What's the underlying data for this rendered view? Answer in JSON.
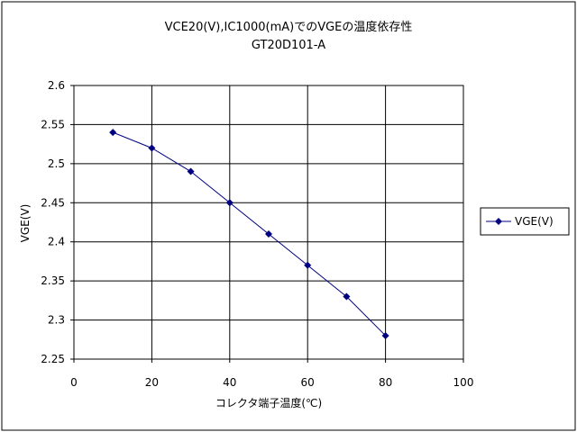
{
  "chart_data": {
    "type": "line",
    "title": "VCE20(V),IC1000(mA)でのVGEの温度依存性",
    "subtitle": "GT20D101-A",
    "xlabel": "コレクタ端子温度(℃)",
    "ylabel": "VGE(V)",
    "xlim": [
      0,
      100
    ],
    "ylim": [
      2.25,
      2.6
    ],
    "x_ticks": [
      "0",
      "20",
      "40",
      "60",
      "80",
      "100"
    ],
    "y_ticks": [
      "2.25",
      "2.3",
      "2.35",
      "2.4",
      "2.45",
      "2.5",
      "2.55",
      "2.6"
    ],
    "grid": true,
    "legend_position": "right",
    "series": [
      {
        "name": "VGE(V)",
        "color": "#000080",
        "marker": "diamond",
        "x": [
          10,
          20,
          30,
          40,
          50,
          60,
          70,
          80
        ],
        "values": [
          2.54,
          2.52,
          2.49,
          2.45,
          2.41,
          2.37,
          2.33,
          2.28
        ]
      }
    ]
  }
}
